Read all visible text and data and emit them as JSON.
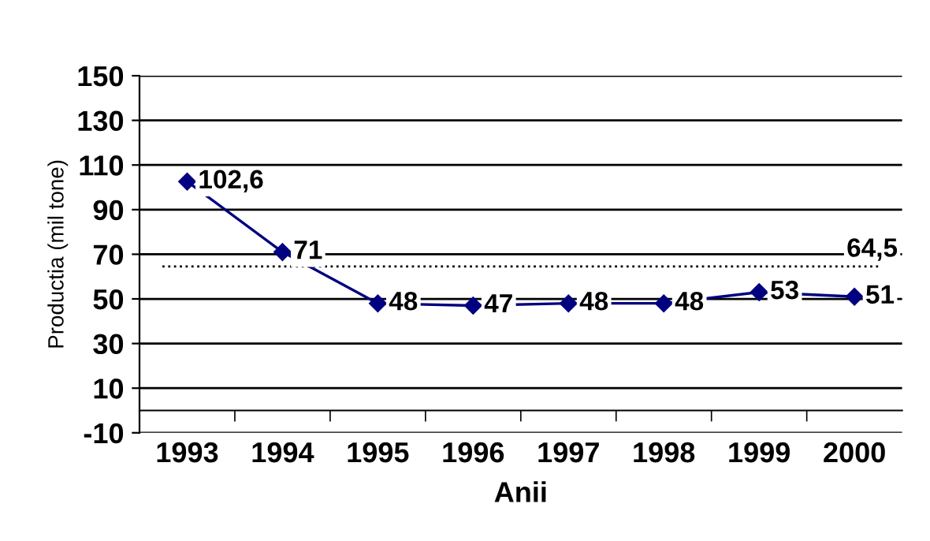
{
  "chart_data": {
    "type": "line",
    "xlabel": "Anii",
    "ylabel": "Productia (mil tone)",
    "categories": [
      "1993",
      "1994",
      "1995",
      "1996",
      "1997",
      "1998",
      "1999",
      "2000"
    ],
    "series": [
      {
        "color": "#000080",
        "values": [
          102.6,
          71,
          48,
          47,
          48,
          48,
          53,
          51
        ],
        "value_labels": [
          "102,6",
          "71",
          "48",
          "47",
          "48",
          "48",
          "53",
          "51"
        ]
      }
    ],
    "ylim": [
      -10,
      150
    ],
    "yticks": [
      -10,
      10,
      30,
      50,
      70,
      90,
      110,
      130,
      150
    ],
    "grid": "y",
    "marker": "diamond",
    "line_style": "solid",
    "ref_lines": [
      {
        "axis": "y",
        "value": 64.5,
        "label": "64,5",
        "color": "#000000",
        "line_style": "dotted"
      }
    ]
  }
}
